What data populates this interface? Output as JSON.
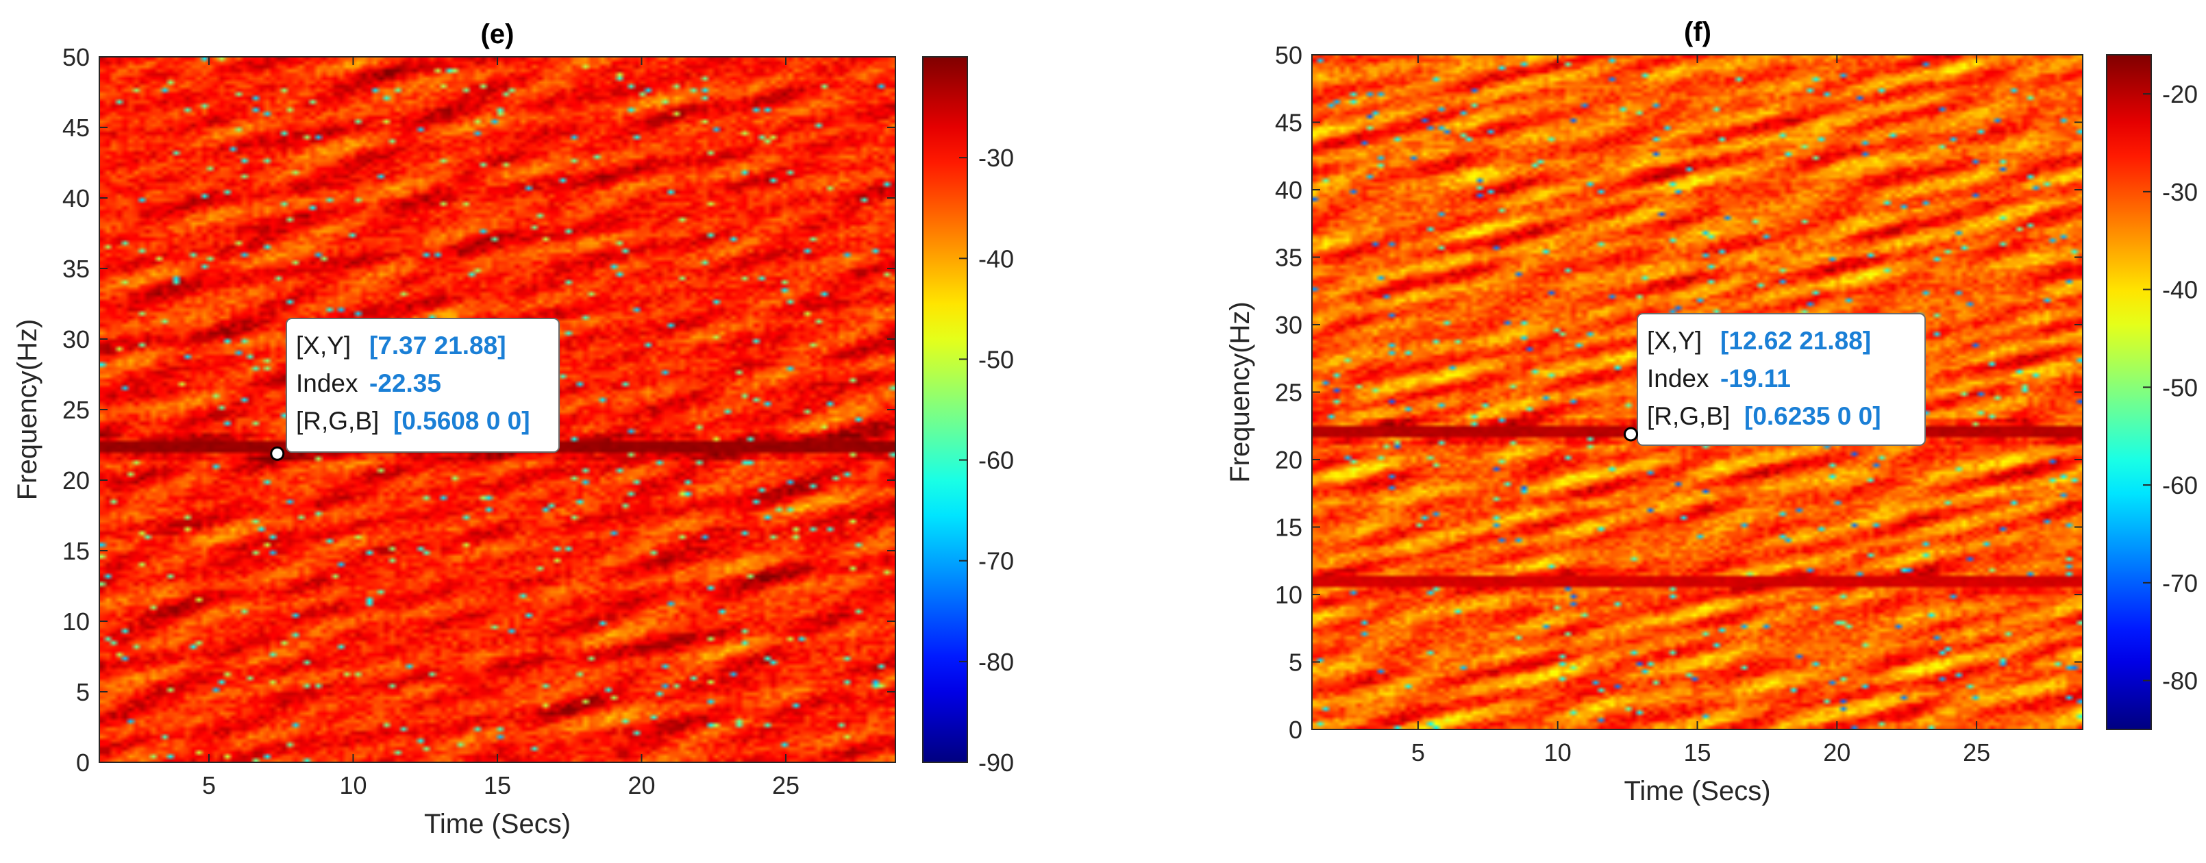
{
  "chart_data": [
    {
      "type": "heatmap",
      "title": "(e)",
      "xlabel": "Time (Secs)",
      "ylabel": "Frequency(Hz)",
      "xlim": [
        1.2,
        28.8
      ],
      "ylim": [
        0,
        50
      ],
      "xticks": [
        5,
        10,
        15,
        20,
        25
      ],
      "yticks": [
        0,
        5,
        10,
        15,
        20,
        25,
        30,
        35,
        40,
        45,
        50
      ],
      "clim": [
        -90,
        -20
      ],
      "colorbar_ticks": [
        -30,
        -40,
        -50,
        -60,
        -70,
        -80,
        -90
      ],
      "colormap": "jet",
      "grid": false,
      "dominant_value_range": [
        -40,
        -22
      ],
      "ridge_frequencies_hz": [
        22.3
      ],
      "datatip": {
        "x": 7.37,
        "y": 21.88,
        "index": -22.35,
        "rgb": "0.5608 0 0",
        "line1_key": "[X,Y]",
        "line1_val": "[7.37 21.88]",
        "line2_key": "Index",
        "line2_val": "-22.35",
        "line3_key": "[R,G,B]",
        "line3_val": "[0.5608 0 0]"
      }
    },
    {
      "type": "heatmap",
      "title": "(f)",
      "xlabel": "Time (Secs)",
      "ylabel": "Frequency(Hz)",
      "xlim": [
        1.2,
        28.8
      ],
      "ylim": [
        0,
        50
      ],
      "xticks": [
        5,
        10,
        15,
        20,
        25
      ],
      "yticks": [
        0,
        5,
        10,
        15,
        20,
        25,
        30,
        35,
        40,
        45,
        50
      ],
      "clim": [
        -85,
        -16
      ],
      "colorbar_ticks": [
        -20,
        -30,
        -40,
        -50,
        -60,
        -70,
        -80
      ],
      "colormap": "jet",
      "grid": false,
      "dominant_value_range": [
        -42,
        -20
      ],
      "ridge_frequencies_hz": [
        22.0,
        11.0
      ],
      "datatip": {
        "x": 12.62,
        "y": 21.88,
        "index": -19.11,
        "rgb": "0.6235 0 0",
        "line1_key": "[X,Y]",
        "line1_val": "[12.62 21.88]",
        "line2_key": "Index",
        "line2_val": "-19.11",
        "line3_key": "[R,G,B]",
        "line3_val": "[0.6235 0 0]"
      }
    }
  ]
}
